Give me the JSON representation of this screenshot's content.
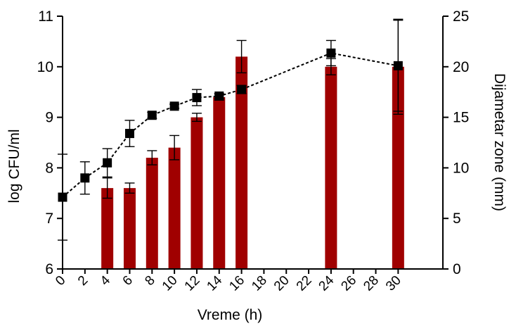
{
  "chart_data": {
    "type": "bar",
    "xlabel": "Vreme (h)",
    "ylabel": "log CFU/ml",
    "y2label": "Dijametar zone (mm)",
    "xlim": [
      0,
      34
    ],
    "ylim": [
      6,
      11
    ],
    "y2lim": [
      0,
      25
    ],
    "x_ticks": [
      0,
      2,
      4,
      6,
      8,
      10,
      12,
      14,
      16,
      18,
      20,
      22,
      24,
      26,
      28,
      30
    ],
    "x_tick_labels": [
      "0",
      "2",
      "4",
      "6",
      "8",
      "10",
      "12",
      "14",
      "16",
      "18",
      "20",
      "22",
      "24",
      "26",
      "28",
      "30"
    ],
    "y_ticks": [
      6,
      7,
      8,
      9,
      10,
      11
    ],
    "y_tick_labels": [
      "6",
      "7",
      "8",
      "9",
      "10",
      "11"
    ],
    "y2_ticks": [
      0,
      5,
      10,
      15,
      20,
      25
    ],
    "y2_tick_labels": [
      "0",
      "5",
      "10",
      "15",
      "20",
      "25"
    ],
    "grid": false,
    "colors": {
      "bars": "#a00000",
      "line": "#000000",
      "axis": "#000000"
    },
    "series": [
      {
        "type": "bar",
        "axis": "right",
        "x": [
          4,
          6,
          8,
          10,
          12,
          14,
          16,
          24,
          30
        ],
        "values": [
          8,
          8,
          11,
          12,
          15,
          17,
          21,
          20,
          20
        ],
        "err": [
          1,
          0.5,
          0.7,
          1.2,
          0.4,
          0.3,
          1.6,
          0.8,
          4.7
        ]
      },
      {
        "type": "line",
        "axis": "left",
        "style": "dashed",
        "marker": "square",
        "x": [
          0,
          2,
          4,
          6,
          8,
          10,
          12,
          14,
          16,
          24,
          30
        ],
        "values": [
          7.42,
          7.8,
          8.1,
          8.68,
          9.04,
          9.22,
          9.39,
          9.42,
          9.55,
          10.27,
          10.02
        ],
        "err": [
          0.85,
          0.32,
          0.28,
          0.26,
          0.06,
          0.04,
          0.16,
          0.05,
          0.08,
          0.25,
          0.9
        ]
      }
    ]
  }
}
